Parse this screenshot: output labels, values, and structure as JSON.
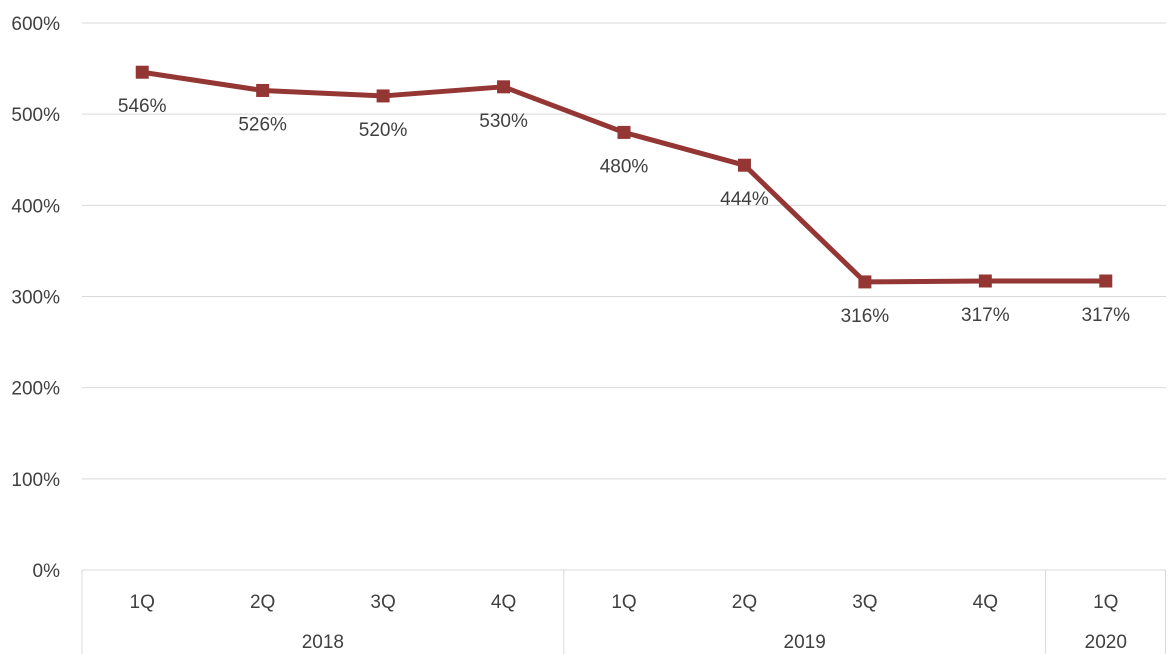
{
  "chart_data": {
    "type": "line",
    "title": "",
    "xlabel": "",
    "ylabel": "",
    "categories": [
      "1Q",
      "2Q",
      "3Q",
      "4Q",
      "1Q",
      "2Q",
      "3Q",
      "4Q",
      "1Q"
    ],
    "groups": [
      {
        "label": "2018",
        "span": 4
      },
      {
        "label": "2019",
        "span": 4
      },
      {
        "label": "2020",
        "span": 1
      }
    ],
    "series": [
      {
        "values": [
          546,
          526,
          520,
          530,
          480,
          444,
          316,
          317,
          317
        ],
        "data_labels": [
          "546%",
          "526%",
          "520%",
          "530%",
          "480%",
          "444%",
          "316%",
          "317%",
          "317%"
        ],
        "color": "#943634",
        "marker": "square"
      }
    ],
    "ylim": [
      0,
      600
    ],
    "yticks": [
      0,
      100,
      200,
      300,
      400,
      500,
      600
    ],
    "ytick_labels": [
      "0%",
      "100%",
      "200%",
      "300%",
      "400%",
      "500%",
      "600%"
    ],
    "grid": true,
    "legend": "none",
    "colors": {
      "line": "#943634",
      "grid": "#d9d9d9",
      "text": "#404040"
    }
  }
}
